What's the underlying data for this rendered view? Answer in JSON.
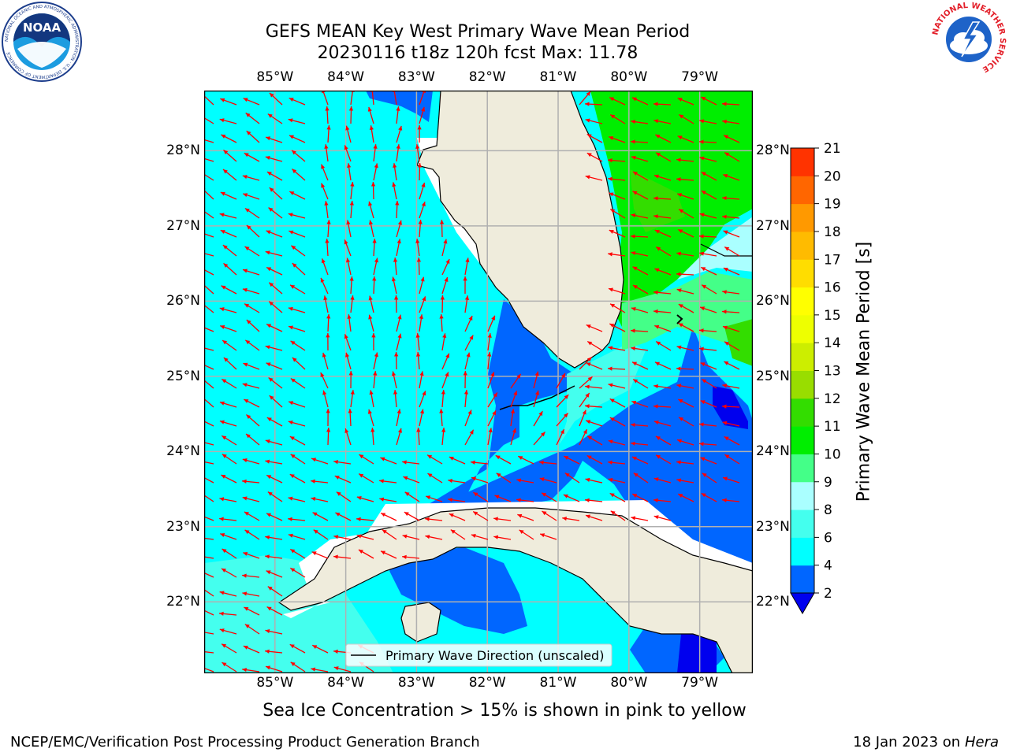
{
  "header": {
    "title_line1": "GEFS MEAN Key West Primary Wave Mean Period",
    "title_line2": "20230116 t18z 120h fcst   Max: 11.78",
    "left_logo": {
      "icon": "noaa-logo-icon",
      "text": "NOAA",
      "ring_text": "NATIONAL OCEANIC AND ATMOSPHERIC ADMINISTRATION · U.S. DEPARTMENT OF COMMERCE"
    },
    "right_logo": {
      "icon": "nws-logo-icon",
      "ring_text": "NATIONAL WEATHER SERVICE"
    }
  },
  "map": {
    "lon_ticks": [
      "85°W",
      "84°W",
      "83°W",
      "82°W",
      "81°W",
      "80°W",
      "79°W"
    ],
    "lat_ticks": [
      "28°N",
      "27°N",
      "26°N",
      "25°N",
      "24°N",
      "23°N",
      "22°N"
    ],
    "lon_range": [
      -86.0,
      -78.25
    ],
    "lat_range": [
      21.05,
      28.8
    ],
    "legend_label": "Primary Wave Direction (unscaled)",
    "colors": {
      "land": "#efecdc",
      "coast": "#000000",
      "arrow": "#ff0000",
      "grid": "#b0b0b0"
    }
  },
  "colorbar": {
    "label": "Primary Wave Mean Period [s]",
    "ticks": [
      "2",
      "4",
      "6",
      "8",
      "9",
      "10",
      "11",
      "12",
      "13",
      "14",
      "15",
      "16",
      "17",
      "18",
      "19",
      "20",
      "21"
    ],
    "levels": [
      2,
      4,
      6,
      8,
      9,
      10,
      11,
      12,
      13,
      14,
      15,
      16,
      17,
      18,
      19,
      20,
      21
    ],
    "colors": [
      "#0066ff",
      "#00ffff",
      "#44ffee",
      "#aaffff",
      "#44ff88",
      "#00ee00",
      "#33dd00",
      "#99dd00",
      "#ccee00",
      "#eeff00",
      "#ffff00",
      "#ffdd00",
      "#ffbb00",
      "#ff9900",
      "#ff6600",
      "#ff3300",
      "#ff0000"
    ],
    "underflow_color": "#0000ee"
  },
  "footer": {
    "note": "Sea Ice Concentration > 15% is shown in pink to yellow",
    "left": "NCEP/EMC/Verification Post Processing Product Generation Branch",
    "right_prefix": "18 Jan 2023 on ",
    "right_host": "Hera"
  }
}
